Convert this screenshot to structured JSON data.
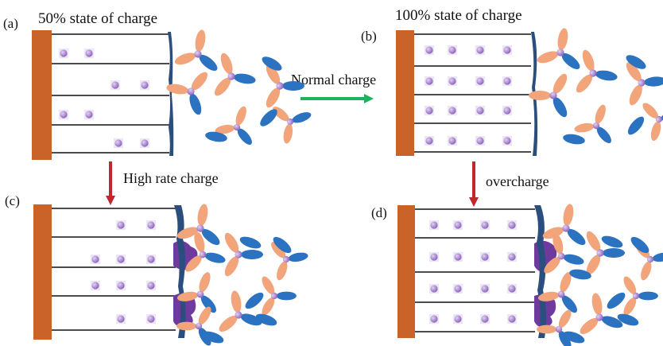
{
  "panels": {
    "a": {
      "letter": "(a)",
      "title": "50% state of charge"
    },
    "b": {
      "letter": "(b)",
      "title": "100% state of charge"
    },
    "c": {
      "letter": "(c)"
    },
    "d": {
      "letter": "(d)"
    }
  },
  "arrows": {
    "normal": {
      "label": "Normal charge",
      "color": "#1db35e"
    },
    "high_rate": {
      "label": "High rate charge",
      "color": "#c0282d"
    },
    "overcharge": {
      "label": "overcharge",
      "color": "#c0282d"
    }
  },
  "colors": {
    "electrode": "#c9632a",
    "sei": "#2a4f7e",
    "lithium_plating": "#6e3a9e",
    "ion": "#9a70c4",
    "solvent_blue": "#2b72c0",
    "solvent_orange": "#f2a47a",
    "graphite_layer": "#111111"
  }
}
